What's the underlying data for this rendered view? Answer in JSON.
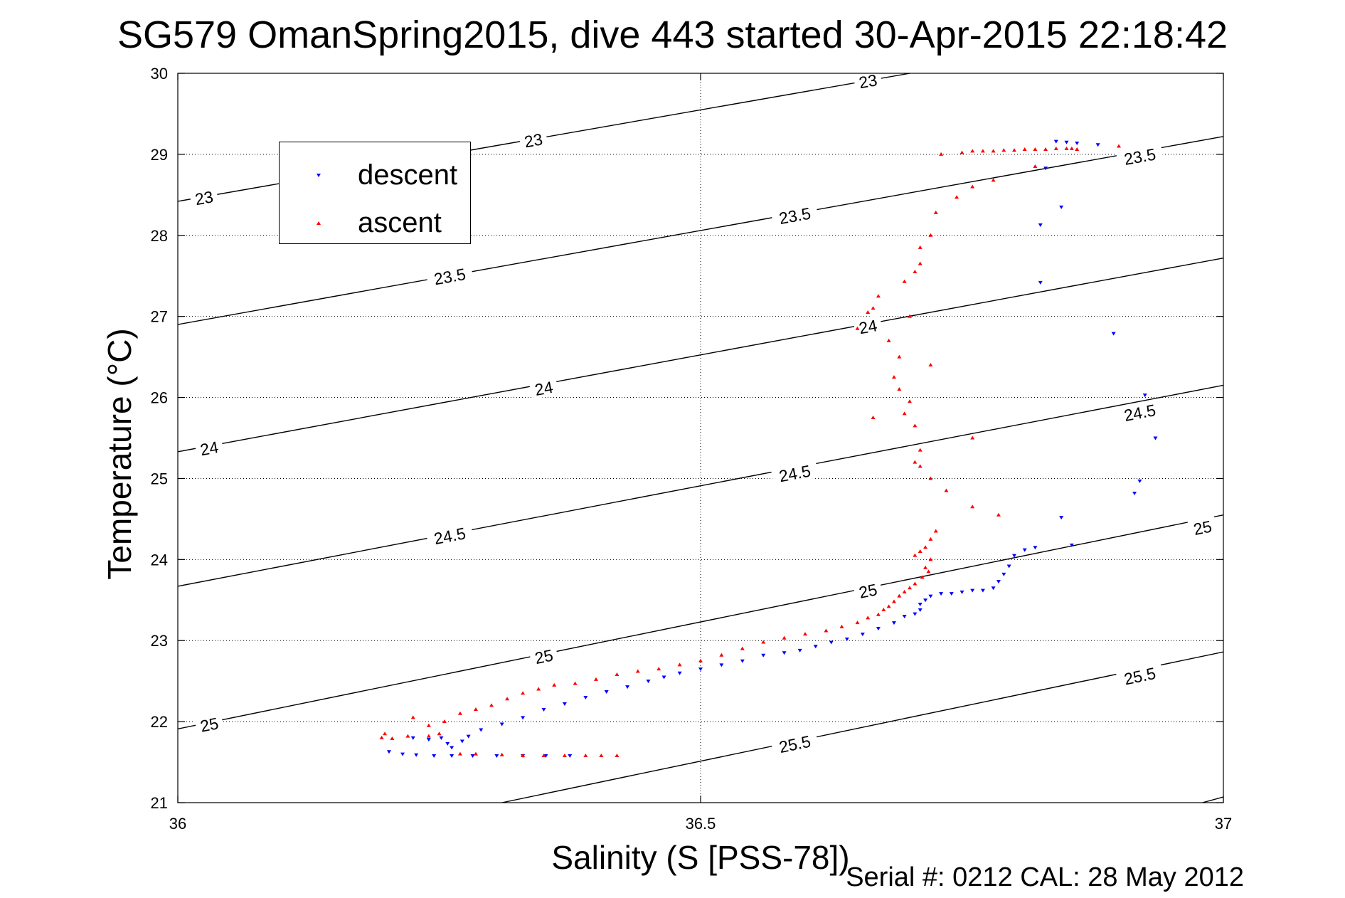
{
  "title": "SG579 OmanSpring2015, dive 443 started 30-Apr-2015 22:18:42",
  "footer": "Serial #: 0212  CAL: 28 May 2012",
  "chart_data": {
    "type": "scatter",
    "title": "SG579 OmanSpring2015, dive 443 started 30-Apr-2015 22:18:42",
    "xlabel": "Salinity (S [PSS-78])",
    "ylabel": "Temperature (°C)",
    "xlim": [
      36,
      37
    ],
    "ylim": [
      21,
      30
    ],
    "xticks": [
      36,
      36.5,
      37
    ],
    "xtick_labels": [
      "36",
      "36.5",
      "37"
    ],
    "yticks": [
      21,
      22,
      23,
      24,
      25,
      26,
      27,
      28,
      29,
      30
    ],
    "ytick_labels": [
      "21",
      "22",
      "23",
      "24",
      "25",
      "26",
      "27",
      "28",
      "29",
      "30"
    ],
    "grid": true,
    "legend": "top-left",
    "contours": [
      {
        "level": "23",
        "line": [
          [
            36.0,
            28.42
          ],
          [
            36.7,
            30.0
          ]
        ],
        "labels": [
          [
            36.025,
            28.47
          ],
          [
            36.34,
            29.18
          ],
          [
            36.66,
            29.91
          ]
        ]
      },
      {
        "level": "23.5",
        "line": [
          [
            36.0,
            26.9
          ],
          [
            37.0,
            29.22
          ]
        ],
        "labels": [
          [
            36.26,
            27.5
          ],
          [
            36.59,
            28.25
          ],
          [
            36.92,
            28.98
          ]
        ]
      },
      {
        "level": "24",
        "line": [
          [
            36.0,
            25.33
          ],
          [
            37.0,
            27.72
          ]
        ],
        "labels": [
          [
            36.03,
            25.38
          ],
          [
            36.35,
            26.12
          ],
          [
            36.66,
            26.88
          ]
        ]
      },
      {
        "level": "24.5",
        "line": [
          [
            36.0,
            23.67
          ],
          [
            37.0,
            26.15
          ]
        ],
        "labels": [
          [
            36.26,
            24.3
          ],
          [
            36.59,
            25.07
          ],
          [
            36.92,
            25.82
          ]
        ]
      },
      {
        "level": "25",
        "line": [
          [
            36.0,
            21.91
          ],
          [
            37.0,
            24.55
          ]
        ],
        "labels": [
          [
            36.03,
            21.97
          ],
          [
            36.35,
            22.81
          ],
          [
            36.66,
            23.62
          ],
          [
            36.98,
            24.4
          ]
        ]
      },
      {
        "level": "25.5",
        "line": [
          [
            36.31,
            21.0
          ],
          [
            37.0,
            22.86
          ]
        ],
        "labels": [
          [
            36.59,
            21.73
          ],
          [
            36.92,
            22.57
          ]
        ]
      },
      {
        "level": "",
        "line": [
          [
            36.98,
            21.0
          ],
          [
            37.0,
            21.07
          ]
        ],
        "labels": []
      }
    ],
    "series": [
      {
        "name": "descent",
        "color": "#0000ff",
        "marker": "triangle-down",
        "points": [
          [
            36.85,
            29.15
          ],
          [
            36.84,
            29.16
          ],
          [
            36.86,
            29.14
          ],
          [
            36.88,
            29.12
          ],
          [
            36.83,
            28.83
          ],
          [
            36.845,
            28.35
          ],
          [
            36.825,
            28.13
          ],
          [
            36.825,
            27.42
          ],
          [
            36.895,
            26.79
          ],
          [
            36.925,
            26.03
          ],
          [
            36.935,
            25.5
          ],
          [
            36.92,
            24.97
          ],
          [
            36.915,
            24.82
          ],
          [
            36.855,
            24.18
          ],
          [
            36.845,
            24.52
          ],
          [
            36.82,
            24.15
          ],
          [
            36.81,
            24.12
          ],
          [
            36.8,
            24.05
          ],
          [
            36.795,
            23.92
          ],
          [
            36.79,
            23.82
          ],
          [
            36.785,
            23.73
          ],
          [
            36.78,
            23.65
          ],
          [
            36.77,
            23.62
          ],
          [
            36.76,
            23.62
          ],
          [
            36.75,
            23.6
          ],
          [
            36.74,
            23.58
          ],
          [
            36.73,
            23.58
          ],
          [
            36.72,
            23.55
          ],
          [
            36.715,
            23.5
          ],
          [
            36.71,
            23.45
          ],
          [
            36.71,
            23.38
          ],
          [
            36.705,
            23.33
          ],
          [
            36.695,
            23.3
          ],
          [
            36.685,
            23.22
          ],
          [
            36.67,
            23.15
          ],
          [
            36.655,
            23.08
          ],
          [
            36.64,
            23.02
          ],
          [
            36.625,
            22.98
          ],
          [
            36.61,
            22.93
          ],
          [
            36.595,
            22.88
          ],
          [
            36.58,
            22.85
          ],
          [
            36.56,
            22.82
          ],
          [
            36.54,
            22.75
          ],
          [
            36.52,
            22.7
          ],
          [
            36.5,
            22.65
          ],
          [
            36.48,
            22.6
          ],
          [
            36.465,
            22.55
          ],
          [
            36.45,
            22.5
          ],
          [
            36.43,
            22.43
          ],
          [
            36.41,
            22.37
          ],
          [
            36.39,
            22.3
          ],
          [
            36.37,
            22.22
          ],
          [
            36.35,
            22.15
          ],
          [
            36.33,
            22.05
          ],
          [
            36.31,
            21.97
          ],
          [
            36.29,
            21.9
          ],
          [
            36.278,
            21.82
          ],
          [
            36.272,
            21.76
          ],
          [
            36.262,
            21.68
          ],
          [
            36.258,
            21.73
          ],
          [
            36.252,
            21.8
          ],
          [
            36.24,
            21.78
          ],
          [
            36.225,
            21.8
          ],
          [
            36.202,
            21.63
          ],
          [
            36.215,
            21.6
          ],
          [
            36.228,
            21.59
          ],
          [
            36.245,
            21.58
          ],
          [
            36.262,
            21.58
          ],
          [
            36.282,
            21.58
          ],
          [
            36.305,
            21.58
          ],
          [
            36.33,
            21.58
          ],
          [
            36.352,
            21.58
          ],
          [
            36.375,
            21.58
          ]
        ]
      },
      {
        "name": "ascent",
        "color": "#ff0000",
        "marker": "triangle-up",
        "points": [
          [
            36.86,
            29.06
          ],
          [
            36.855,
            29.07
          ],
          [
            36.85,
            29.07
          ],
          [
            36.84,
            29.07
          ],
          [
            36.83,
            29.06
          ],
          [
            36.82,
            29.06
          ],
          [
            36.81,
            29.06
          ],
          [
            36.8,
            29.05
          ],
          [
            36.79,
            29.05
          ],
          [
            36.78,
            29.04
          ],
          [
            36.77,
            29.04
          ],
          [
            36.76,
            29.04
          ],
          [
            36.75,
            29.02
          ],
          [
            36.73,
            29.0
          ],
          [
            36.9,
            29.1
          ],
          [
            36.82,
            28.85
          ],
          [
            36.78,
            28.68
          ],
          [
            36.76,
            28.6
          ],
          [
            36.745,
            28.47
          ],
          [
            36.725,
            28.28
          ],
          [
            36.72,
            28.0
          ],
          [
            36.71,
            27.85
          ],
          [
            36.71,
            27.65
          ],
          [
            36.705,
            27.55
          ],
          [
            36.695,
            27.43
          ],
          [
            36.67,
            27.25
          ],
          [
            36.665,
            27.1
          ],
          [
            36.66,
            27.05
          ],
          [
            36.7,
            27.0
          ],
          [
            36.65,
            26.85
          ],
          [
            36.68,
            26.7
          ],
          [
            36.69,
            26.5
          ],
          [
            36.72,
            26.4
          ],
          [
            36.685,
            26.25
          ],
          [
            36.69,
            26.1
          ],
          [
            36.7,
            25.95
          ],
          [
            36.695,
            25.8
          ],
          [
            36.665,
            25.75
          ],
          [
            36.705,
            25.65
          ],
          [
            36.76,
            25.5
          ],
          [
            36.71,
            25.35
          ],
          [
            36.705,
            25.2
          ],
          [
            36.71,
            25.15
          ],
          [
            36.72,
            25.0
          ],
          [
            36.735,
            24.85
          ],
          [
            36.76,
            24.65
          ],
          [
            36.785,
            24.55
          ],
          [
            36.725,
            24.35
          ],
          [
            36.72,
            24.25
          ],
          [
            36.715,
            24.15
          ],
          [
            36.71,
            24.1
          ],
          [
            36.705,
            24.05
          ],
          [
            36.72,
            24.0
          ],
          [
            36.715,
            23.9
          ],
          [
            36.718,
            23.85
          ],
          [
            36.712,
            23.78
          ],
          [
            36.705,
            23.7
          ],
          [
            36.7,
            23.65
          ],
          [
            36.695,
            23.6
          ],
          [
            36.69,
            23.55
          ],
          [
            36.685,
            23.48
          ],
          [
            36.68,
            23.42
          ],
          [
            36.675,
            23.38
          ],
          [
            36.67,
            23.32
          ],
          [
            36.66,
            23.28
          ],
          [
            36.65,
            23.22
          ],
          [
            36.635,
            23.17
          ],
          [
            36.62,
            23.12
          ],
          [
            36.6,
            23.08
          ],
          [
            36.58,
            23.03
          ],
          [
            36.56,
            22.98
          ],
          [
            36.54,
            22.9
          ],
          [
            36.52,
            22.82
          ],
          [
            36.5,
            22.75
          ],
          [
            36.48,
            22.7
          ],
          [
            36.46,
            22.65
          ],
          [
            36.44,
            22.62
          ],
          [
            36.42,
            22.58
          ],
          [
            36.4,
            22.52
          ],
          [
            36.38,
            22.47
          ],
          [
            36.36,
            22.45
          ],
          [
            36.345,
            22.4
          ],
          [
            36.33,
            22.35
          ],
          [
            36.315,
            22.28
          ],
          [
            36.3,
            22.2
          ],
          [
            36.285,
            22.15
          ],
          [
            36.27,
            22.1
          ],
          [
            36.255,
            22.0
          ],
          [
            36.24,
            21.95
          ],
          [
            36.25,
            21.85
          ],
          [
            36.24,
            21.82
          ],
          [
            36.22,
            21.82
          ],
          [
            36.205,
            21.79
          ],
          [
            36.195,
            21.8
          ],
          [
            36.198,
            21.85
          ],
          [
            36.225,
            22.05
          ],
          [
            36.27,
            21.6
          ],
          [
            36.285,
            21.6
          ],
          [
            36.31,
            21.59
          ],
          [
            36.33,
            21.58
          ],
          [
            36.35,
            21.58
          ],
          [
            36.37,
            21.58
          ],
          [
            36.39,
            21.58
          ],
          [
            36.405,
            21.58
          ],
          [
            36.42,
            21.58
          ]
        ]
      }
    ]
  }
}
